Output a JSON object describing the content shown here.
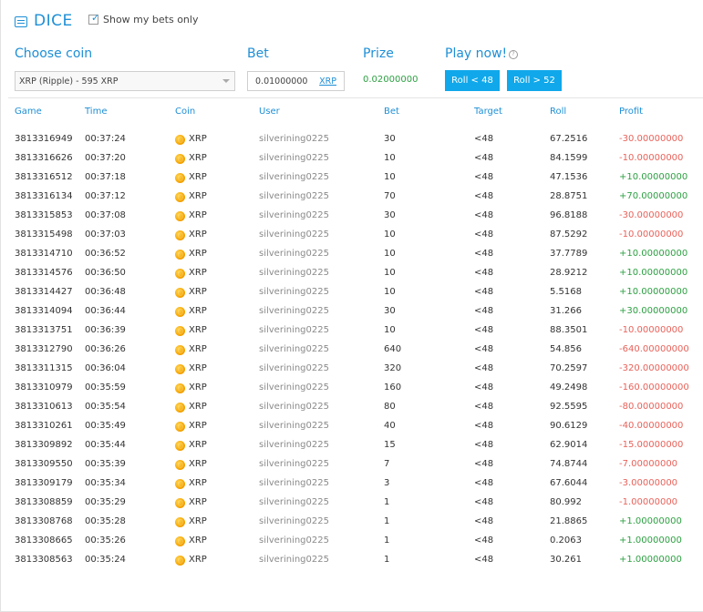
{
  "header": {
    "title": "DICE",
    "show_my_bets_label": "Show my bets only",
    "show_my_bets_checked": true
  },
  "controls": {
    "choose_coin_label": "Choose coin",
    "coin_selected": "XRP (Ripple) - 595 XRP",
    "bet_label": "Bet",
    "bet_value": "0.01000000",
    "bet_unit": "XRP",
    "prize_label": "Prize",
    "prize_value": "0.02000000",
    "play_label": "Play now!",
    "roll_low_label": "Roll < 48",
    "roll_high_label": "Roll > 52"
  },
  "table": {
    "columns": [
      "Game",
      "Time",
      "Coin",
      "User",
      "Bet",
      "Target",
      "Roll",
      "Profit"
    ],
    "rows": [
      {
        "game": "3813316949",
        "time": "00:37:24",
        "coin": "XRP",
        "user": "silverining0225",
        "bet": "30",
        "target": "<48",
        "roll": "67.2516",
        "profit": "-30.00000000"
      },
      {
        "game": "3813316626",
        "time": "00:37:20",
        "coin": "XRP",
        "user": "silverining0225",
        "bet": "10",
        "target": "<48",
        "roll": "84.1599",
        "profit": "-10.00000000"
      },
      {
        "game": "3813316512",
        "time": "00:37:18",
        "coin": "XRP",
        "user": "silverining0225",
        "bet": "10",
        "target": "<48",
        "roll": "47.1536",
        "profit": "+10.00000000"
      },
      {
        "game": "3813316134",
        "time": "00:37:12",
        "coin": "XRP",
        "user": "silverining0225",
        "bet": "70",
        "target": "<48",
        "roll": "28.8751",
        "profit": "+70.00000000"
      },
      {
        "game": "3813315853",
        "time": "00:37:08",
        "coin": "XRP",
        "user": "silverining0225",
        "bet": "30",
        "target": "<48",
        "roll": "96.8188",
        "profit": "-30.00000000"
      },
      {
        "game": "3813315498",
        "time": "00:37:03",
        "coin": "XRP",
        "user": "silverining0225",
        "bet": "10",
        "target": "<48",
        "roll": "87.5292",
        "profit": "-10.00000000"
      },
      {
        "game": "3813314710",
        "time": "00:36:52",
        "coin": "XRP",
        "user": "silverining0225",
        "bet": "10",
        "target": "<48",
        "roll": "37.7789",
        "profit": "+10.00000000"
      },
      {
        "game": "3813314576",
        "time": "00:36:50",
        "coin": "XRP",
        "user": "silverining0225",
        "bet": "10",
        "target": "<48",
        "roll": "28.9212",
        "profit": "+10.00000000"
      },
      {
        "game": "3813314427",
        "time": "00:36:48",
        "coin": "XRP",
        "user": "silverining0225",
        "bet": "10",
        "target": "<48",
        "roll": "5.5168",
        "profit": "+10.00000000"
      },
      {
        "game": "3813314094",
        "time": "00:36:44",
        "coin": "XRP",
        "user": "silverining0225",
        "bet": "30",
        "target": "<48",
        "roll": "31.266",
        "profit": "+30.00000000"
      },
      {
        "game": "3813313751",
        "time": "00:36:39",
        "coin": "XRP",
        "user": "silverining0225",
        "bet": "10",
        "target": "<48",
        "roll": "88.3501",
        "profit": "-10.00000000"
      },
      {
        "game": "3813312790",
        "time": "00:36:26",
        "coin": "XRP",
        "user": "silverining0225",
        "bet": "640",
        "target": "<48",
        "roll": "54.856",
        "profit": "-640.00000000"
      },
      {
        "game": "3813311315",
        "time": "00:36:04",
        "coin": "XRP",
        "user": "silverining0225",
        "bet": "320",
        "target": "<48",
        "roll": "70.2597",
        "profit": "-320.00000000"
      },
      {
        "game": "3813310979",
        "time": "00:35:59",
        "coin": "XRP",
        "user": "silverining0225",
        "bet": "160",
        "target": "<48",
        "roll": "49.2498",
        "profit": "-160.00000000"
      },
      {
        "game": "3813310613",
        "time": "00:35:54",
        "coin": "XRP",
        "user": "silverining0225",
        "bet": "80",
        "target": "<48",
        "roll": "92.5595",
        "profit": "-80.00000000"
      },
      {
        "game": "3813310261",
        "time": "00:35:49",
        "coin": "XRP",
        "user": "silverining0225",
        "bet": "40",
        "target": "<48",
        "roll": "90.6129",
        "profit": "-40.00000000"
      },
      {
        "game": "3813309892",
        "time": "00:35:44",
        "coin": "XRP",
        "user": "silverining0225",
        "bet": "15",
        "target": "<48",
        "roll": "62.9014",
        "profit": "-15.00000000"
      },
      {
        "game": "3813309550",
        "time": "00:35:39",
        "coin": "XRP",
        "user": "silverining0225",
        "bet": "7",
        "target": "<48",
        "roll": "74.8744",
        "profit": "-7.00000000"
      },
      {
        "game": "3813309179",
        "time": "00:35:34",
        "coin": "XRP",
        "user": "silverining0225",
        "bet": "3",
        "target": "<48",
        "roll": "67.6044",
        "profit": "-3.00000000"
      },
      {
        "game": "3813308859",
        "time": "00:35:29",
        "coin": "XRP",
        "user": "silverining0225",
        "bet": "1",
        "target": "<48",
        "roll": "80.992",
        "profit": "-1.00000000"
      },
      {
        "game": "3813308768",
        "time": "00:35:28",
        "coin": "XRP",
        "user": "silverining0225",
        "bet": "1",
        "target": "<48",
        "roll": "21.8865",
        "profit": "+1.00000000"
      },
      {
        "game": "3813308665",
        "time": "00:35:26",
        "coin": "XRP",
        "user": "silverining0225",
        "bet": "1",
        "target": "<48",
        "roll": "0.2063",
        "profit": "+1.00000000"
      },
      {
        "game": "3813308563",
        "time": "00:35:24",
        "coin": "XRP",
        "user": "silverining0225",
        "bet": "1",
        "target": "<48",
        "roll": "30.261",
        "profit": "+1.00000000"
      }
    ]
  },
  "colors": {
    "accent": "#1e8fd6",
    "button": "#10a8ea",
    "positive": "#2ea043",
    "negative": "#e8625a"
  }
}
